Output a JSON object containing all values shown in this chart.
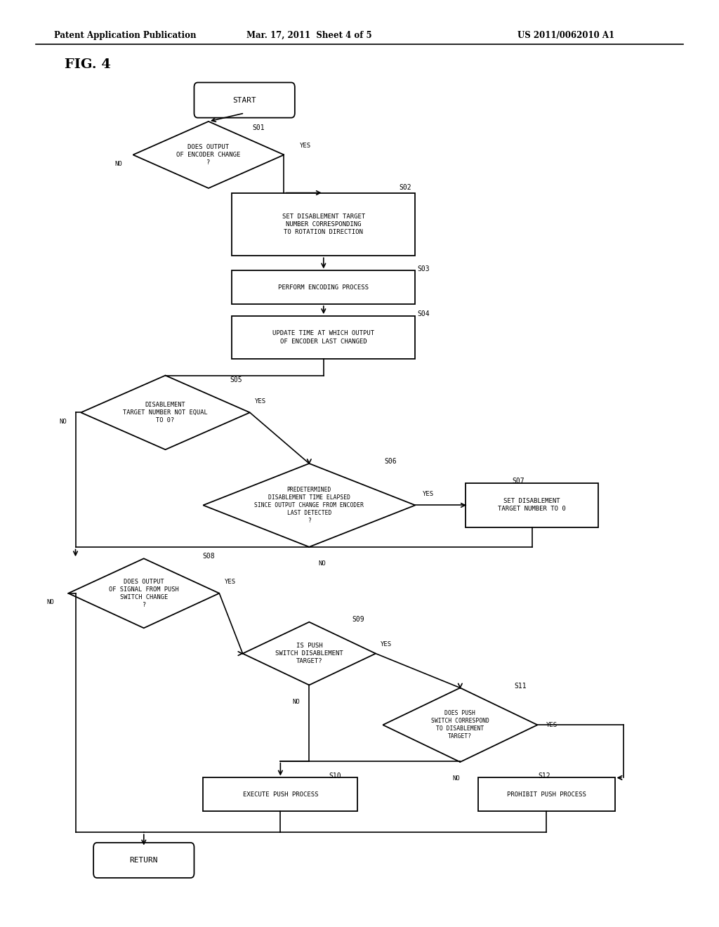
{
  "bg_color": "#ffffff",
  "header_left": "Patent Application Publication",
  "header_mid": "Mar. 17, 2011  Sheet 4 of 5",
  "header_right": "US 2011/0062010 A1",
  "fig_label": "FIG. 4",
  "line_color": "#000000"
}
